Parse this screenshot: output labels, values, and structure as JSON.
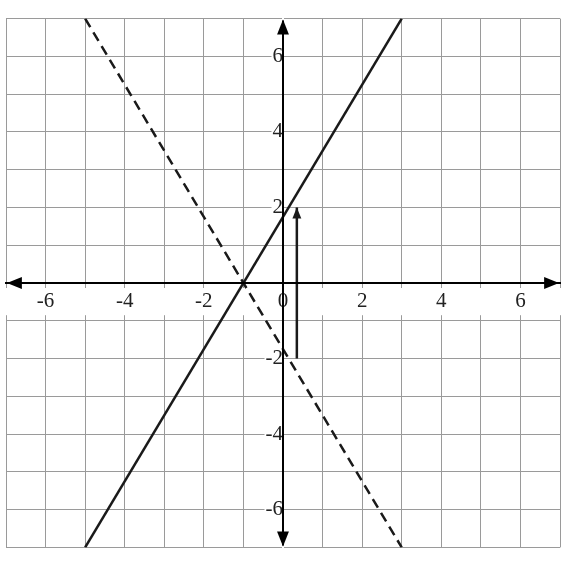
{
  "chart_data": {
    "type": "line",
    "xlim": [
      -7,
      7
    ],
    "ylim": [
      -7,
      7
    ],
    "xticks": [
      -6,
      -4,
      -2,
      0,
      2,
      4,
      6
    ],
    "yticks": [
      -6,
      -4,
      -2,
      2,
      4,
      6
    ],
    "grid": true,
    "series": [
      {
        "x": [
          -5,
          3
        ],
        "values": [
          -7,
          7
        ],
        "color": "#1a1a1a",
        "line_style": "solid"
      },
      {
        "x": [
          -5,
          3
        ],
        "values": [
          7,
          -7
        ],
        "color": "#1a1a1a",
        "line_style": "dashed"
      },
      {
        "x": [
          0.35,
          0.35
        ],
        "values": [
          -2,
          2
        ],
        "color": "#1a1a1a",
        "line_style": "solid",
        "marker": "arrow"
      }
    ]
  }
}
